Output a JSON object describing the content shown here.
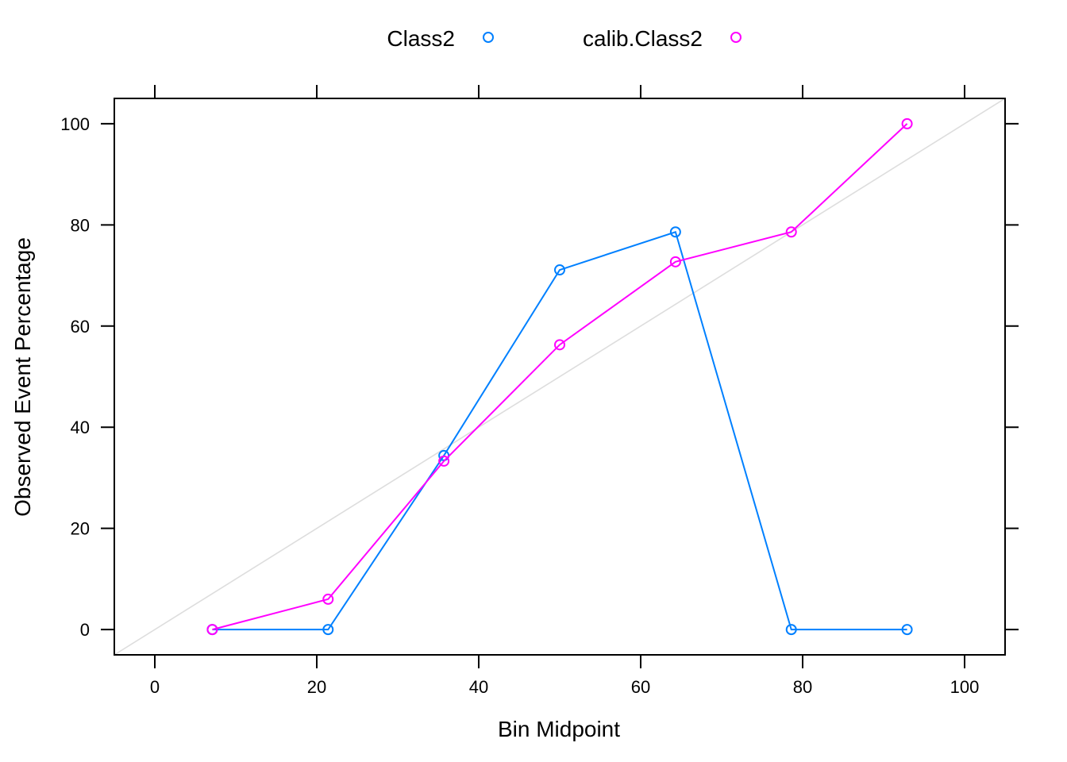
{
  "chart_data": {
    "type": "line",
    "title": "",
    "xlabel": "Bin Midpoint",
    "ylabel": "Observed Event Percentage",
    "xlim": [
      -5,
      105
    ],
    "ylim": [
      -5,
      105
    ],
    "xticks": [
      0,
      20,
      40,
      60,
      80,
      100
    ],
    "yticks": [
      0,
      20,
      40,
      60,
      80,
      100
    ],
    "grid": false,
    "legend_position": "top",
    "reference_line": {
      "from": [
        -5,
        -5
      ],
      "to": [
        105,
        105
      ],
      "color": "#dddddd"
    },
    "series": [
      {
        "name": "Class2",
        "color": "#0080ff",
        "x": [
          7.1,
          21.4,
          35.7,
          50.0,
          64.3,
          78.6,
          92.9
        ],
        "y": [
          0,
          0,
          34.4,
          71.1,
          78.6,
          0,
          0
        ]
      },
      {
        "name": "calib.Class2",
        "color": "#ff00ff",
        "x": [
          7.1,
          21.4,
          35.7,
          50.0,
          64.3,
          78.6,
          92.9
        ],
        "y": [
          0,
          6.0,
          33.3,
          56.3,
          72.7,
          78.6,
          100
        ]
      }
    ]
  }
}
